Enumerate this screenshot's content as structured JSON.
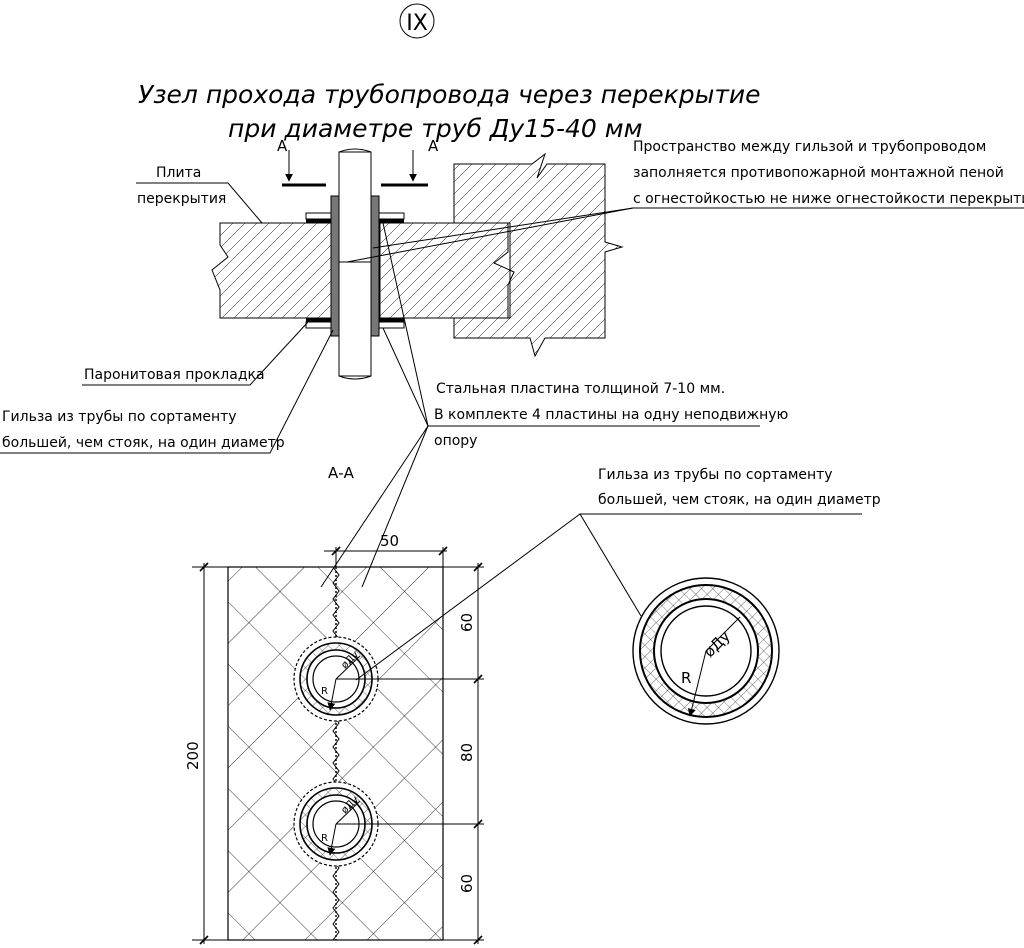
{
  "sheet": {
    "node_number": "IX",
    "title_line1": "Узел прохода трубопровода через перекрытие",
    "title_line2": "при диаметре труб Ду15-40 мм"
  },
  "labels": {
    "section_mark_a": "А",
    "slab_line1": "Плита",
    "slab_line2": "перекрытия",
    "foam_line1": "Пространство между гильзой и трубопроводом",
    "foam_line2": "заполняется противопожарной монтажной пеной",
    "foam_line3": "с огнестойкостью не ниже огнестойкости перекрытия",
    "gasket": "Паронитовая прокладка",
    "sleeve_left_line1": "Гильза из трубы по сортаменту",
    "sleeve_left_line2": "большей, чем стояк, на один диаметр",
    "plate_line1": "Стальная пластина толщиной 7-10 мм.",
    "plate_line2": "В комплекте 4 пластины на одну неподвижную",
    "plate_line3": "опору",
    "section_title": "А-А",
    "sleeve_right_line1": "Гильза из трубы по сортаменту",
    "sleeve_right_line2": "большей, чем стояк, на один диаметр",
    "radius": "R",
    "diameter": "øДу"
  },
  "dimensions": {
    "width_top": "50",
    "height_total": "200",
    "seg_top": "60",
    "seg_middle": "80",
    "seg_bottom": "60"
  }
}
